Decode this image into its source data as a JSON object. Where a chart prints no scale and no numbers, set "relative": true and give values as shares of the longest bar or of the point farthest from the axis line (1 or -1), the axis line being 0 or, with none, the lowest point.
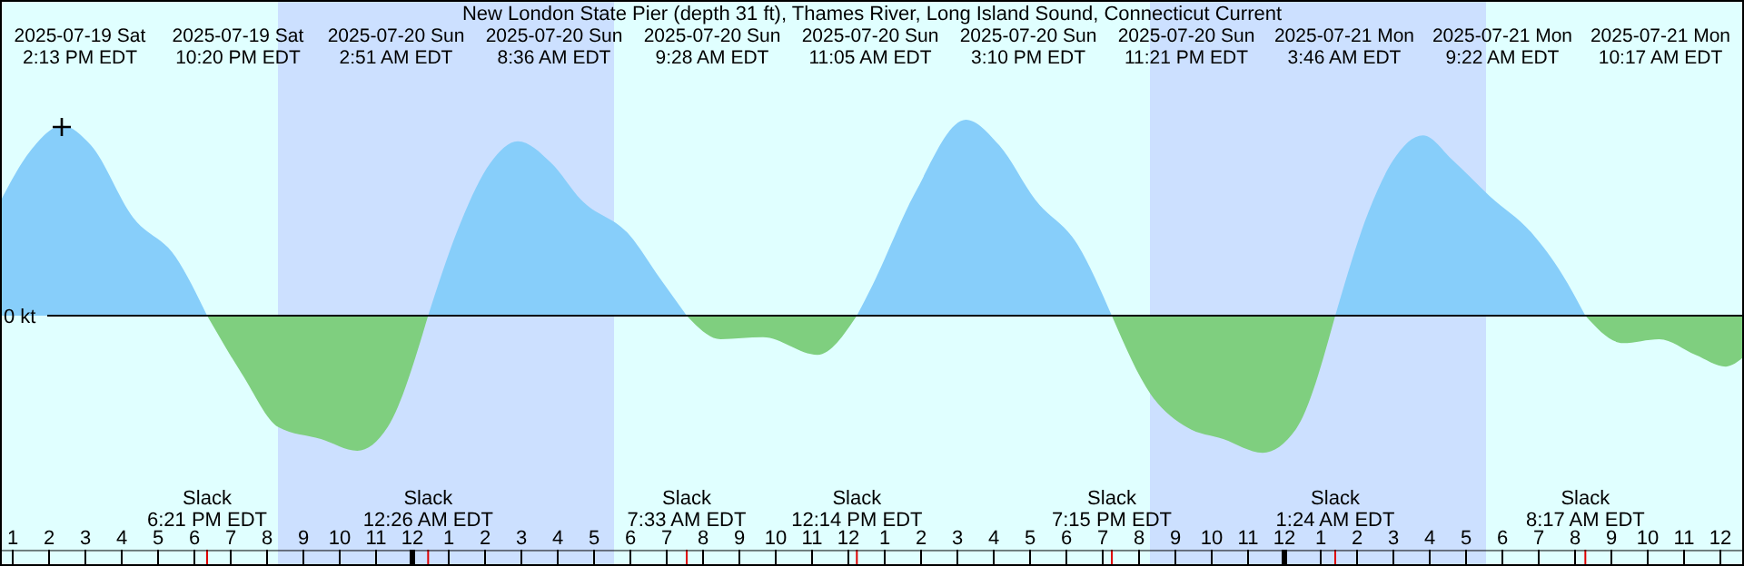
{
  "chart_data": {
    "type": "area",
    "relative": true,
    "title": "New London State Pier (depth 31 ft), Thames River, Long Island Sound, Connecticut Current",
    "ylabel": "0 kt",
    "xlim": [
      "2025-07-19T12:39",
      "2025-07-21T12:39"
    ],
    "xticks": [
      {
        "value": "2025-07-19T13:00",
        "label": "1"
      },
      {
        "value": "2025-07-19T14:00",
        "label": "2"
      },
      {
        "value": "2025-07-19T15:00",
        "label": "3"
      },
      {
        "value": "2025-07-19T16:00",
        "label": "4"
      },
      {
        "value": "2025-07-19T17:00",
        "label": "5"
      },
      {
        "value": "2025-07-19T18:00",
        "label": "6"
      },
      {
        "value": "2025-07-19T19:00",
        "label": "7"
      },
      {
        "value": "2025-07-19T20:00",
        "label": "8"
      },
      {
        "value": "2025-07-19T21:00",
        "label": "9"
      },
      {
        "value": "2025-07-19T22:00",
        "label": "10"
      },
      {
        "value": "2025-07-19T23:00",
        "label": "11"
      },
      {
        "value": "2025-07-20T00:00",
        "label": "12"
      },
      {
        "value": "2025-07-20T01:00",
        "label": "1"
      },
      {
        "value": "2025-07-20T02:00",
        "label": "2"
      },
      {
        "value": "2025-07-20T03:00",
        "label": "3"
      },
      {
        "value": "2025-07-20T04:00",
        "label": "4"
      },
      {
        "value": "2025-07-20T05:00",
        "label": "5"
      },
      {
        "value": "2025-07-20T06:00",
        "label": "6"
      },
      {
        "value": "2025-07-20T07:00",
        "label": "7"
      },
      {
        "value": "2025-07-20T08:00",
        "label": "8"
      },
      {
        "value": "2025-07-20T09:00",
        "label": "9"
      },
      {
        "value": "2025-07-20T10:00",
        "label": "10"
      },
      {
        "value": "2025-07-20T11:00",
        "label": "11"
      },
      {
        "value": "2025-07-20T12:00",
        "label": "12"
      },
      {
        "value": "2025-07-20T13:00",
        "label": "1"
      },
      {
        "value": "2025-07-20T14:00",
        "label": "2"
      },
      {
        "value": "2025-07-20T15:00",
        "label": "3"
      },
      {
        "value": "2025-07-20T16:00",
        "label": "4"
      },
      {
        "value": "2025-07-20T17:00",
        "label": "5"
      },
      {
        "value": "2025-07-20T18:00",
        "label": "6"
      },
      {
        "value": "2025-07-20T19:00",
        "label": "7"
      },
      {
        "value": "2025-07-20T20:00",
        "label": "8"
      },
      {
        "value": "2025-07-20T21:00",
        "label": "9"
      },
      {
        "value": "2025-07-20T22:00",
        "label": "10"
      },
      {
        "value": "2025-07-20T23:00",
        "label": "11"
      },
      {
        "value": "2025-07-21T00:00",
        "label": "12"
      },
      {
        "value": "2025-07-21T01:00",
        "label": "1"
      },
      {
        "value": "2025-07-21T02:00",
        "label": "2"
      },
      {
        "value": "2025-07-21T03:00",
        "label": "3"
      },
      {
        "value": "2025-07-21T04:00",
        "label": "4"
      },
      {
        "value": "2025-07-21T05:00",
        "label": "5"
      },
      {
        "value": "2025-07-21T06:00",
        "label": "6"
      },
      {
        "value": "2025-07-21T07:00",
        "label": "7"
      },
      {
        "value": "2025-07-21T08:00",
        "label": "8"
      },
      {
        "value": "2025-07-21T09:00",
        "label": "9"
      },
      {
        "value": "2025-07-21T10:00",
        "label": "10"
      },
      {
        "value": "2025-07-21T11:00",
        "label": "11"
      },
      {
        "value": "2025-07-21T12:00",
        "label": "12"
      }
    ],
    "series": [
      {
        "color": "#87cefa",
        "x": [
          "2025-07-19T12:39",
          "2025-07-19T13:29",
          "2025-07-19T14:22",
          "2025-07-19T15:09",
          "2025-07-19T16:19",
          "2025-07-19T17:29",
          "2025-07-19T18:21",
          "2025-07-19T21:00",
          "2025-07-20T00:26",
          "2025-07-20T01:19",
          "2025-07-20T02:09",
          "2025-07-20T02:54",
          "2025-07-20T03:49",
          "2025-07-20T04:39",
          "2025-07-20T05:59",
          "2025-07-20T06:49",
          "2025-07-20T07:33",
          "2025-07-20T10:00",
          "2025-07-20T12:14",
          "2025-07-20T12:39",
          "2025-07-20T13:49",
          "2025-07-20T15:14",
          "2025-07-20T16:09",
          "2025-07-20T17:09",
          "2025-07-20T18:19",
          "2025-07-20T19:15",
          "2025-07-20T22:00",
          "2025-07-21T01:24",
          "2025-07-21T02:19",
          "2025-07-21T02:59",
          "2025-07-21T03:49",
          "2025-07-21T04:39",
          "2025-07-21T05:39",
          "2025-07-21T06:49",
          "2025-07-21T07:39",
          "2025-07-21T08:17"
        ],
        "values": [
          0.58,
          0.84,
          0.97,
          0.87,
          0.5,
          0.3,
          0,
          null,
          0,
          0.47,
          0.78,
          0.89,
          0.78,
          0.59,
          0.41,
          0.19,
          0,
          null,
          0,
          0.15,
          0.62,
          1,
          0.87,
          0.59,
          0.36,
          0,
          null,
          0,
          0.53,
          0.79,
          0.92,
          0.79,
          0.61,
          0.42,
          0.21,
          0
        ]
      },
      {
        "color": "#7fcf7f",
        "x": [
          "2025-07-19T18:21",
          "2025-07-19T19:19",
          "2025-07-19T20:19",
          "2025-07-19T21:29",
          "2025-07-19T22:29",
          "2025-07-19T23:19",
          "2025-07-20T00:26",
          "2025-07-20T04:00",
          "2025-07-20T07:33",
          "2025-07-20T08:29",
          "2025-07-20T09:39",
          "2025-07-20T11:09",
          "2025-07-20T12:14",
          "2025-07-20T16:00",
          "2025-07-20T19:15",
          "2025-07-20T20:19",
          "2025-07-20T21:19",
          "2025-07-20T22:19",
          "2025-07-20T23:24",
          "2025-07-21T00:19",
          "2025-07-21T01:24",
          "2025-07-21T05:00",
          "2025-07-21T08:17",
          "2025-07-21T09:19",
          "2025-07-21T10:19",
          "2025-07-21T11:19",
          "2025-07-21T12:09",
          "2025-07-21T12:39"
        ],
        "values": [
          0,
          -0.3,
          -0.57,
          -0.63,
          -0.69,
          -0.57,
          0,
          null,
          0,
          -0.12,
          -0.11,
          -0.2,
          0,
          null,
          0,
          -0.4,
          -0.57,
          -0.63,
          -0.7,
          -0.58,
          0,
          null,
          0,
          -0.14,
          -0.12,
          -0.2,
          -0.26,
          -0.21
        ]
      }
    ],
    "bands": [
      {
        "axis": "x",
        "from": "2025-07-19T20:18",
        "to": "2025-07-20T05:33",
        "color": "#cce0ff"
      },
      {
        "axis": "x",
        "from": "2025-07-20T20:18",
        "to": "2025-07-21T05:33",
        "color": "#cce0ff"
      }
    ],
    "annotations": [
      "2025-07-19 Sat\n2:13 PM EDT",
      "2025-07-19 Sat\n10:20 PM EDT",
      "2025-07-20 Sun\n2:51 AM EDT",
      "2025-07-20 Sun\n8:36 AM EDT",
      "2025-07-20 Sun\n9:28 AM EDT",
      "2025-07-20 Sun\n11:05 AM EDT",
      "2025-07-20 Sun\n3:10 PM EDT",
      "2025-07-20 Sun\n11:21 PM EDT",
      "2025-07-21 Mon\n3:46 AM EDT",
      "2025-07-21 Mon\n9:22 AM EDT",
      "2025-07-21 Mon\n10:17 AM EDT",
      {
        "text": "Slack\n6:21 PM EDT",
        "x": "2025-07-19T18:21"
      },
      {
        "text": "Slack\n12:26 AM EDT",
        "x": "2025-07-20T00:26"
      },
      {
        "text": "Slack\n7:33 AM EDT",
        "x": "2025-07-20T07:33"
      },
      {
        "text": "Slack\n12:14 PM EDT",
        "x": "2025-07-20T12:14"
      },
      {
        "text": "Slack\n7:15 PM EDT",
        "x": "2025-07-20T19:15"
      },
      {
        "text": "Slack\n1:24 AM EDT",
        "x": "2025-07-21T01:24"
      },
      {
        "text": "Slack\n8:17 AM EDT",
        "x": "2025-07-21T08:17"
      }
    ]
  }
}
